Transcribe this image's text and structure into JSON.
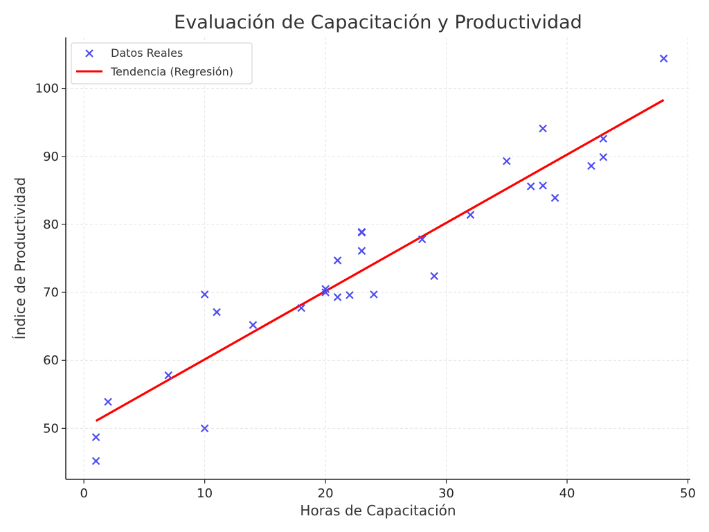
{
  "chart_data": {
    "type": "scatter",
    "title": "Evaluación de Capacitación y Productividad",
    "xlabel": "Horas de Capacitación",
    "ylabel": "Índice de Productividad",
    "xlim": [
      -1.5,
      50.2
    ],
    "ylim": [
      42.5,
      107.5
    ],
    "xticks": [
      0,
      10,
      20,
      30,
      40,
      50
    ],
    "yticks": [
      50,
      60,
      70,
      80,
      90,
      100
    ],
    "grid": true,
    "legend_position": "top-left",
    "series": [
      {
        "name": "Datos Reales",
        "kind": "scatter",
        "marker": "x",
        "color": "#4b4bf0",
        "points": [
          [
            1,
            48.7
          ],
          [
            1,
            45.2
          ],
          [
            2,
            53.9
          ],
          [
            7,
            57.8
          ],
          [
            10,
            69.7
          ],
          [
            10,
            50.0
          ],
          [
            11,
            67.1
          ],
          [
            14,
            65.2
          ],
          [
            18,
            67.7
          ],
          [
            20,
            70.5
          ],
          [
            20,
            70.0
          ],
          [
            21,
            74.7
          ],
          [
            21,
            69.3
          ],
          [
            22,
            69.6
          ],
          [
            23,
            78.9
          ],
          [
            23,
            78.8
          ],
          [
            23,
            76.1
          ],
          [
            24,
            69.7
          ],
          [
            28,
            77.8
          ],
          [
            29,
            72.4
          ],
          [
            32,
            81.4
          ],
          [
            35,
            89.3
          ],
          [
            37,
            85.6
          ],
          [
            38,
            85.7
          ],
          [
            38,
            94.1
          ],
          [
            39,
            83.9
          ],
          [
            42,
            88.6
          ],
          [
            43,
            92.6
          ],
          [
            43,
            89.9
          ],
          [
            48,
            104.4
          ]
        ]
      },
      {
        "name": "Tendencia (Regresión)",
        "kind": "line",
        "color": "#ff0000",
        "points": [
          [
            1,
            51.1
          ],
          [
            48,
            98.3
          ]
        ]
      }
    ]
  }
}
